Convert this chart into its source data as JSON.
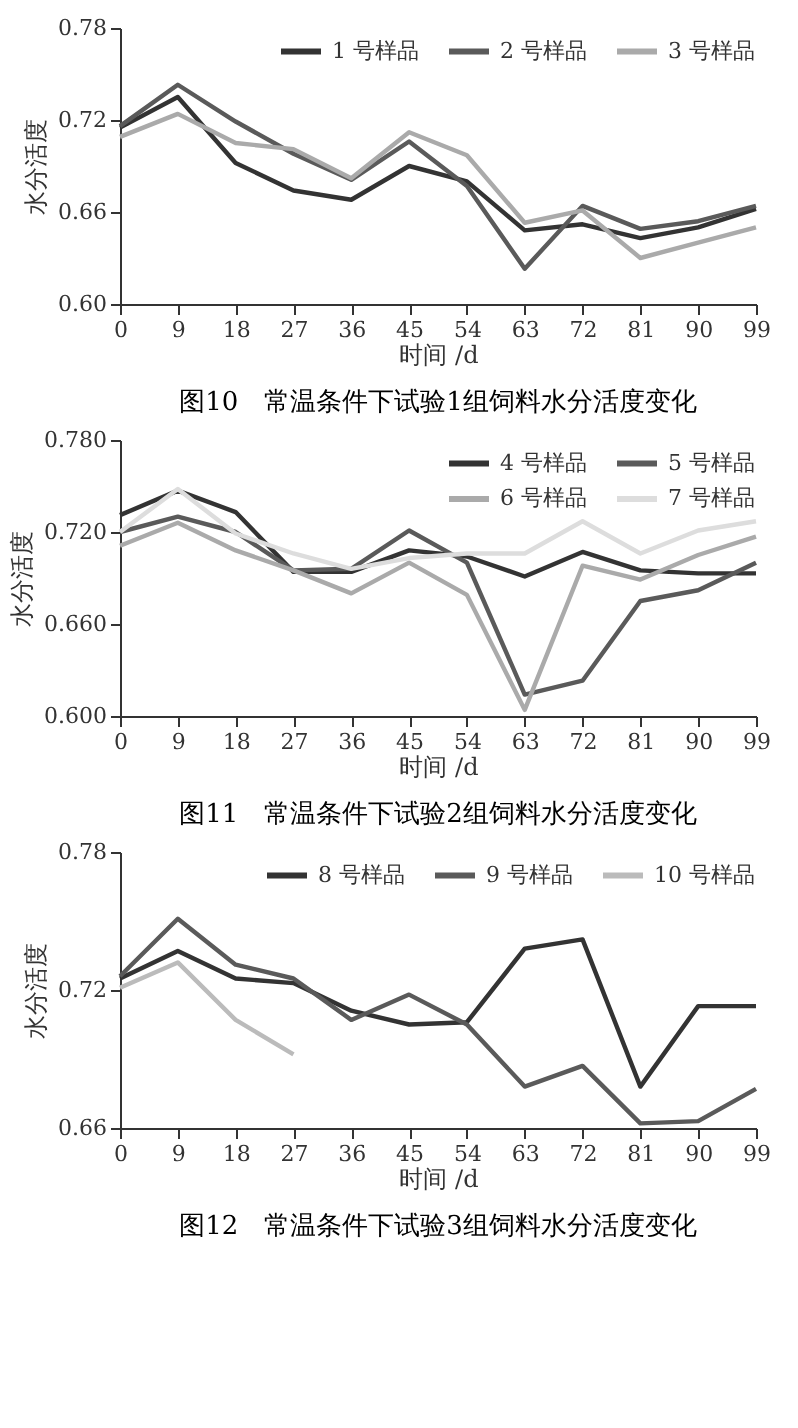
{
  "chart_data": [
    {
      "type": "line",
      "title": "图10　常温条件下试验1组饲料水分活度变化",
      "xlabel": "时间 /d",
      "ylabel": "水分活度",
      "x": [
        0,
        9,
        18,
        27,
        36,
        45,
        54,
        63,
        72,
        81,
        90,
        99
      ],
      "series": [
        {
          "name": "1 号样品",
          "color": "#333333",
          "values": [
            0.715,
            0.735,
            0.692,
            0.674,
            0.668,
            0.69,
            0.68,
            0.648,
            0.652,
            0.643,
            0.65,
            0.662
          ]
        },
        {
          "name": "2 号样品",
          "color": "#5a5a5a",
          "values": [
            0.716,
            0.743,
            0.719,
            0.698,
            0.681,
            0.706,
            0.677,
            0.623,
            0.664,
            0.649,
            0.654,
            0.664
          ]
        },
        {
          "name": "3 号样品",
          "color": "#aaaaaa",
          "values": [
            0.709,
            0.724,
            0.705,
            0.701,
            0.682,
            0.712,
            0.697,
            0.653,
            0.661,
            0.63,
            0.64,
            0.65
          ]
        }
      ],
      "xlim": [
        0,
        99
      ],
      "xticks": [
        0,
        9,
        18,
        27,
        36,
        45,
        54,
        63,
        72,
        81,
        90,
        99
      ],
      "ylim": [
        0.6,
        0.78
      ],
      "yticks": [
        {
          "value": 0.6,
          "label": "0.60"
        },
        0.66,
        0.72,
        0.78
      ],
      "legend": "top right",
      "grid": false,
      "marker": "none",
      "line_style": "solid"
    },
    {
      "type": "line",
      "title": "图11　常温条件下试验2组饲料水分活度变化",
      "xlabel": "时间 /d",
      "ylabel": "水分活度",
      "x": [
        0,
        9,
        18,
        27,
        36,
        45,
        54,
        63,
        72,
        81,
        90,
        99
      ],
      "series": [
        {
          "name": "4 号样品",
          "color": "#333333",
          "values": [
            0.731,
            0.747,
            0.733,
            0.694,
            0.694,
            0.708,
            0.704,
            0.691,
            0.707,
            0.695,
            0.693,
            0.693
          ]
        },
        {
          "name": "5 号样品",
          "color": "#5a5a5a",
          "values": [
            0.72,
            0.73,
            0.72,
            0.695,
            0.696,
            0.721,
            0.7,
            0.614,
            0.623,
            0.675,
            0.682,
            0.7
          ]
        },
        {
          "name": "6 号样品",
          "color": "#aaaaaa",
          "values": [
            0.711,
            0.726,
            0.708,
            0.695,
            0.68,
            0.7,
            0.679,
            0.604,
            0.698,
            0.689,
            0.705,
            0.717
          ]
        },
        {
          "name": "7 号样品",
          "color": "#dddddd",
          "values": [
            0.72,
            0.748,
            0.719,
            0.706,
            0.696,
            0.703,
            0.706,
            0.706,
            0.727,
            0.706,
            0.721,
            0.727
          ]
        }
      ],
      "xlim": [
        0,
        99
      ],
      "xticks": [
        0,
        9,
        18,
        27,
        36,
        45,
        54,
        63,
        72,
        81,
        90,
        99
      ],
      "ylim": [
        0.6,
        0.78
      ],
      "yticks": [
        {
          "value": 0.6,
          "label": "0.600"
        },
        {
          "value": 0.66,
          "label": "0.660"
        },
        {
          "value": 0.72,
          "label": "0.720"
        },
        {
          "value": 0.78,
          "label": "0.780"
        }
      ],
      "legend": "top right",
      "grid": false,
      "marker": "none",
      "line_style": "solid"
    },
    {
      "type": "line",
      "title": "图12　常温条件下试验3组饲料水分活度变化",
      "xlabel": "时间 /d",
      "ylabel": "水分活度",
      "x": [
        0,
        9,
        18,
        27,
        36,
        45,
        54,
        63,
        72,
        81,
        90,
        99
      ],
      "series": [
        {
          "name": "8 号样品",
          "color": "#333333",
          "values": [
            0.725,
            0.737,
            0.725,
            0.723,
            0.711,
            0.705,
            0.706,
            0.738,
            0.742,
            0.678,
            0.713,
            0.713
          ]
        },
        {
          "name": "9 号样品",
          "color": "#5a5a5a",
          "values": [
            0.726,
            0.751,
            0.731,
            0.725,
            0.707,
            0.718,
            0.705,
            0.678,
            0.687,
            0.662,
            0.663,
            0.677
          ]
        },
        {
          "name": "10 号样品",
          "color": "#bbbbbb",
          "values": [
            0.721,
            0.732,
            0.707,
            0.692,
            null,
            null,
            null,
            null,
            null,
            null,
            null,
            null
          ]
        }
      ],
      "xlim": [
        0,
        99
      ],
      "xticks": [
        0,
        9,
        18,
        27,
        36,
        45,
        54,
        63,
        72,
        81,
        90,
        99
      ],
      "ylim": [
        0.66,
        0.78
      ],
      "yticks": [
        0.66,
        0.72,
        0.78
      ],
      "legend": "top right",
      "grid": false,
      "marker": "none",
      "line_style": "solid"
    }
  ]
}
